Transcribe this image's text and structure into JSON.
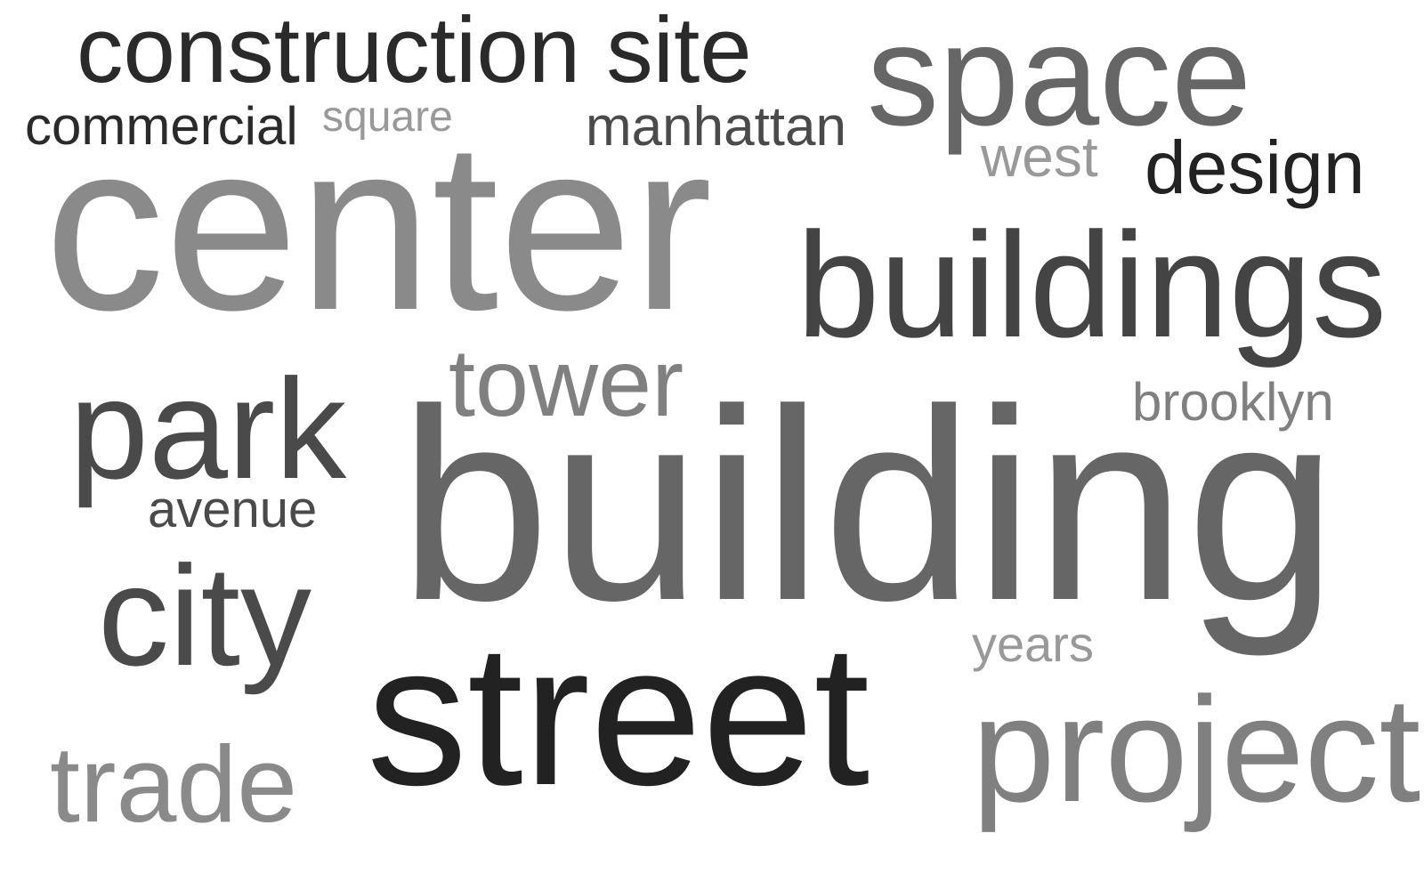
{
  "words": [
    {
      "id": "building",
      "text": "building",
      "color": "#666666"
    },
    {
      "id": "center",
      "text": "center",
      "color": "#8a8a8a"
    },
    {
      "id": "street",
      "text": "street",
      "color": "#222222"
    },
    {
      "id": "buildings",
      "text": "buildings",
      "color": "#444444"
    },
    {
      "id": "space",
      "text": "space",
      "color": "#666666"
    },
    {
      "id": "construction",
      "text": "construction site",
      "color": "#2a2a2a"
    },
    {
      "id": "park",
      "text": "park",
      "color": "#4a4a4a"
    },
    {
      "id": "city",
      "text": "city",
      "color": "#4a4a4a"
    },
    {
      "id": "project",
      "text": "project",
      "color": "#808080"
    },
    {
      "id": "tower",
      "text": "tower",
      "color": "#808080"
    },
    {
      "id": "trade",
      "text": "trade",
      "color": "#8a8a8a"
    },
    {
      "id": "design",
      "text": "design",
      "color": "#222222"
    },
    {
      "id": "manhattan",
      "text": "manhattan",
      "color": "#4a4a4a"
    },
    {
      "id": "commercial",
      "text": "commercial",
      "color": "#2a2a2a"
    },
    {
      "id": "brooklyn",
      "text": "brooklyn",
      "color": "#808080"
    },
    {
      "id": "west",
      "text": "west",
      "color": "#999999"
    },
    {
      "id": "years",
      "text": "years",
      "color": "#999999"
    },
    {
      "id": "square",
      "text": "square",
      "color": "#999999"
    },
    {
      "id": "avenue",
      "text": "avenue",
      "color": "#4a4a4a"
    }
  ]
}
